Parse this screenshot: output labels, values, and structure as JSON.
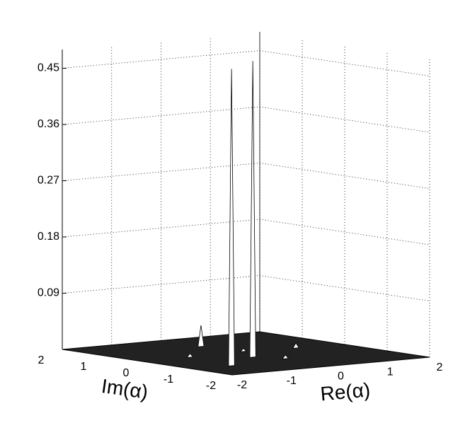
{
  "chart_data": {
    "type": "surface3d",
    "xlabel": "Re(α)",
    "ylabel": "Im(α)",
    "xlim": [
      -2,
      2
    ],
    "ylim": [
      -2,
      2
    ],
    "zlim": [
      0,
      0.48
    ],
    "xticks": [
      -2,
      -1,
      0,
      1,
      2
    ],
    "yticks": [
      -2,
      -1,
      0,
      1,
      2
    ],
    "zticks": [
      0.09,
      0.18,
      0.27,
      0.36,
      0.45
    ],
    "grid": true,
    "surface_color": "#222222",
    "points": {
      "x": [
        -1.23,
        -0.24,
        0,
        -1.04,
        0.12,
        0.05,
        1.08
      ],
      "y": [
        -1.09,
        -0.44,
        1.06,
        0.11,
        0.2,
        -0.87,
        0.08
      ],
      "z": [
        0.475,
        0.474,
        0.034,
        0.006,
        0.005,
        0.006,
        0.008
      ]
    }
  }
}
